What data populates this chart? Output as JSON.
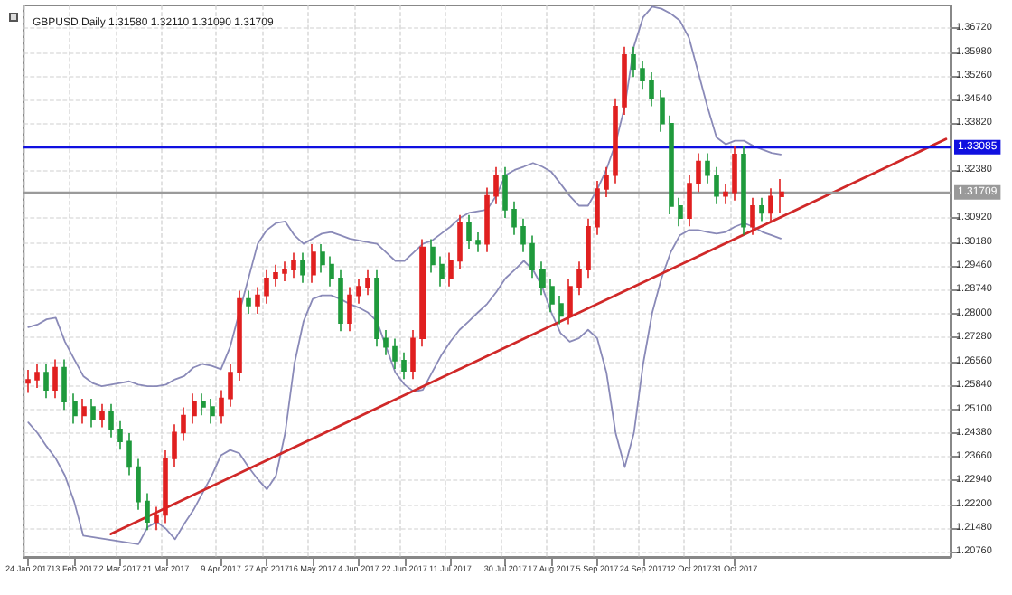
{
  "chart_data": {
    "type": "candlestick",
    "title": "GBPUSD,Daily 1.31580 1.32110 1.31090 1.31709",
    "categories": [
      "24 Jan 2017",
      null,
      null,
      null,
      null,
      "13 Feb 2017",
      null,
      null,
      null,
      null,
      "2 Mar 2017",
      null,
      null,
      null,
      null,
      "21 Mar 2017",
      null,
      null,
      null,
      null,
      null,
      "9 Apr 2017",
      null,
      null,
      null,
      null,
      "27 Apr 2017",
      null,
      null,
      null,
      null,
      "16 May 2017",
      null,
      null,
      null,
      null,
      "4 Jun 2017",
      null,
      null,
      null,
      null,
      "22 Jun 2017",
      null,
      null,
      null,
      null,
      "11 Jul 2017",
      null,
      null,
      null,
      null,
      null,
      "30 Jul 2017",
      null,
      null,
      null,
      null,
      "17 Aug 2017",
      null,
      null,
      null,
      null,
      "5 Sep 2017",
      null,
      null,
      null,
      null,
      "24 Sep 2017",
      null,
      null,
      null,
      null,
      "12 Oct 2017",
      null,
      null,
      null,
      null,
      "31 Oct 2017",
      null,
      null,
      null,
      null,
      null,
      null,
      null,
      null,
      null,
      null,
      null,
      null,
      null,
      null,
      null,
      null,
      null,
      null,
      null,
      null,
      null,
      null,
      null
    ],
    "series": [
      {
        "type": "candlestick",
        "ohlc": [
          [
            1.259,
            1.263,
            1.256,
            1.26
          ],
          [
            1.26,
            1.2647,
            1.2575,
            1.2622
          ],
          [
            1.2622,
            1.2647,
            1.2544,
            1.2569
          ],
          [
            1.2569,
            1.2662,
            1.2544,
            1.2637
          ],
          [
            1.2637,
            1.2662,
            1.2508,
            1.2533
          ],
          [
            1.2533,
            1.2558,
            1.2466,
            1.2491
          ],
          [
            1.2491,
            1.2542,
            1.2466,
            1.2517
          ],
          [
            1.2517,
            1.2542,
            1.2455,
            1.248
          ],
          [
            1.248,
            1.2526,
            1.2455,
            1.2501
          ],
          [
            1.2501,
            1.2526,
            1.2424,
            1.2449
          ],
          [
            1.2449,
            1.2474,
            1.2387,
            1.2412
          ],
          [
            1.2412,
            1.2437,
            1.2309,
            1.2334
          ],
          [
            1.2334,
            1.2359,
            1.2204,
            1.2229
          ],
          [
            1.2229,
            1.2254,
            1.2142,
            1.2167
          ],
          [
            1.2167,
            1.2213,
            1.2142,
            1.2188
          ],
          [
            1.2188,
            1.2385,
            1.2163,
            1.236
          ],
          [
            1.236,
            1.2464,
            1.2335,
            1.2439
          ],
          [
            1.2439,
            1.2516,
            1.2414,
            1.2491
          ],
          [
            1.2491,
            1.2558,
            1.2466,
            1.2533
          ],
          [
            1.2533,
            1.2558,
            1.2492,
            1.2517
          ],
          [
            1.2517,
            1.2542,
            1.2466,
            1.2491
          ],
          [
            1.2491,
            1.2568,
            1.2466,
            1.2543
          ],
          [
            1.2543,
            1.2647,
            1.2518,
            1.2622
          ],
          [
            1.2622,
            1.2871,
            1.2597,
            1.2846
          ],
          [
            1.2846,
            1.2871,
            1.2801,
            1.2826
          ],
          [
            1.2826,
            1.2882,
            1.2801,
            1.2857
          ],
          [
            1.2857,
            1.2934,
            1.2832,
            1.2909
          ],
          [
            1.2909,
            1.295,
            1.2884,
            1.2925
          ],
          [
            1.2925,
            1.296,
            1.29,
            1.2935
          ],
          [
            1.2935,
            1.2987,
            1.291,
            1.2962
          ],
          [
            1.2962,
            1.2987,
            1.2895,
            1.292
          ],
          [
            1.292,
            1.3013,
            1.2895,
            1.2988
          ],
          [
            1.2988,
            1.3013,
            1.2926,
            1.2951
          ],
          [
            1.2951,
            1.2976,
            1.2884,
            1.2909
          ],
          [
            1.2909,
            1.2934,
            1.2748,
            1.2773
          ],
          [
            1.2773,
            1.2882,
            1.2748,
            1.2857
          ],
          [
            1.2857,
            1.2908,
            1.2832,
            1.2883
          ],
          [
            1.2883,
            1.2934,
            1.2858,
            1.2909
          ],
          [
            1.2909,
            1.2934,
            1.2701,
            1.2726
          ],
          [
            1.2726,
            1.2751,
            1.2675,
            1.27
          ],
          [
            1.27,
            1.2725,
            1.2633,
            1.2658
          ],
          [
            1.2658,
            1.2683,
            1.2602,
            1.2627
          ],
          [
            1.2627,
            1.2751,
            1.2602,
            1.2726
          ],
          [
            1.2726,
            1.3028,
            1.2701,
            1.3003
          ],
          [
            1.3003,
            1.3028,
            1.2926,
            1.2951
          ],
          [
            1.2951,
            1.2976,
            1.2884,
            1.2909
          ],
          [
            1.2909,
            1.2987,
            1.2884,
            1.2962
          ],
          [
            1.2962,
            1.3102,
            1.2937,
            1.3077
          ],
          [
            1.3077,
            1.3102,
            1.2999,
            1.3024
          ],
          [
            1.3024,
            1.3049,
            1.2989,
            1.3014
          ],
          [
            1.3014,
            1.3185,
            1.2989,
            1.316
          ],
          [
            1.316,
            1.3248,
            1.3135,
            1.3223
          ],
          [
            1.3223,
            1.3248,
            1.3093,
            1.3118
          ],
          [
            1.3118,
            1.3143,
            1.3041,
            1.3066
          ],
          [
            1.3066,
            1.3091,
            1.2989,
            1.3014
          ],
          [
            1.3014,
            1.3039,
            1.291,
            1.2935
          ],
          [
            1.2935,
            1.296,
            1.2858,
            1.2883
          ],
          [
            1.2883,
            1.2908,
            1.2806,
            1.2831
          ],
          [
            1.2831,
            1.2856,
            1.2769,
            1.2794
          ],
          [
            1.2794,
            1.2908,
            1.2769,
            1.2883
          ],
          [
            1.2883,
            1.296,
            1.2858,
            1.2935
          ],
          [
            1.2935,
            1.3091,
            1.291,
            1.3066
          ],
          [
            1.3066,
            1.3206,
            1.3041,
            1.3181
          ],
          [
            1.3181,
            1.3248,
            1.3156,
            1.3223
          ],
          [
            1.3223,
            1.3457,
            1.3198,
            1.3432
          ],
          [
            1.3432,
            1.3614,
            1.3407,
            1.3589
          ],
          [
            1.3589,
            1.3614,
            1.3522,
            1.3547
          ],
          [
            1.3547,
            1.3572,
            1.3486,
            1.3511
          ],
          [
            1.3511,
            1.3536,
            1.3433,
            1.3458
          ],
          [
            1.3458,
            1.3483,
            1.3355,
            1.338
          ],
          [
            1.338,
            1.3405,
            1.3104,
            1.3129
          ],
          [
            1.3129,
            1.3154,
            1.3067,
            1.3092
          ],
          [
            1.3092,
            1.3222,
            1.3067,
            1.3197
          ],
          [
            1.3197,
            1.329,
            1.3172,
            1.3265
          ],
          [
            1.3265,
            1.329,
            1.3198,
            1.3223
          ],
          [
            1.3223,
            1.3248,
            1.3135,
            1.316
          ],
          [
            1.316,
            1.3196,
            1.3135,
            1.3171
          ],
          [
            1.3171,
            1.3311,
            1.3146,
            1.3286
          ],
          [
            1.3286,
            1.3311,
            1.3041,
            1.3066
          ],
          [
            1.3066,
            1.3154,
            1.3041,
            1.3129
          ],
          [
            1.3129,
            1.3154,
            1.3083,
            1.3108
          ],
          [
            1.3108,
            1.3183,
            1.3083,
            1.3158
          ],
          [
            1.3158,
            1.3211,
            1.3109,
            1.3171
          ],
          null,
          null,
          null,
          null,
          null,
          null,
          null,
          null,
          null,
          null,
          null,
          null,
          null,
          null,
          null,
          null,
          null,
          null
        ],
        "colors": [
          "#e02020",
          "#e02020",
          "#1f9a3c",
          "#e02020",
          "#1f9a3c",
          "#1f9a3c",
          "#e02020",
          "#1f9a3c",
          "#e02020",
          "#1f9a3c",
          "#1f9a3c",
          "#1f9a3c",
          "#1f9a3c",
          "#1f9a3c",
          "#e02020",
          "#e02020",
          "#e02020",
          "#e02020",
          "#e02020",
          "#1f9a3c",
          "#1f9a3c",
          "#e02020",
          "#e02020",
          "#e02020",
          "#1f9a3c",
          "#e02020",
          "#e02020",
          "#e02020",
          "#e02020",
          "#e02020",
          "#1f9a3c",
          "#e02020",
          "#1f9a3c",
          "#1f9a3c",
          "#1f9a3c",
          "#e02020",
          "#e02020",
          "#e02020",
          "#1f9a3c",
          "#1f9a3c",
          "#1f9a3c",
          "#1f9a3c",
          "#e02020",
          "#e02020",
          "#1f9a3c",
          "#1f9a3c",
          "#e02020",
          "#e02020",
          "#1f9a3c",
          "#1f9a3c",
          "#e02020",
          "#e02020",
          "#1f9a3c",
          "#1f9a3c",
          "#1f9a3c",
          "#1f9a3c",
          "#1f9a3c",
          "#1f9a3c",
          "#1f9a3c",
          "#e02020",
          "#e02020",
          "#e02020",
          "#e02020",
          "#e02020",
          "#e02020",
          "#e02020",
          "#1f9a3c",
          "#1f9a3c",
          "#1f9a3c",
          "#1f9a3c",
          "#1f9a3c",
          "#1f9a3c",
          "#e02020",
          "#e02020",
          "#1f9a3c",
          "#1f9a3c",
          "#e02020",
          "#e02020",
          "#1f9a3c",
          "#e02020",
          "#1f9a3c",
          "#e02020",
          "#e02020",
          null,
          null,
          null,
          null,
          null,
          null,
          null,
          null,
          null,
          null,
          null,
          null,
          null,
          null,
          null,
          null,
          null,
          null
        ]
      },
      {
        "type": "line",
        "color": "#8a8ab8",
        "values": [
          1.276,
          1.2768,
          1.2784,
          1.2789,
          1.2716,
          1.2663,
          1.2611,
          1.259,
          1.258,
          1.2585,
          1.259,
          1.2595,
          1.2585,
          1.258,
          1.258,
          1.2585,
          1.2601,
          1.2611,
          1.2637,
          1.2648,
          1.2642,
          1.2632,
          1.27,
          1.2805,
          1.2909,
          1.3014,
          1.3056,
          1.3077,
          1.3082,
          1.304,
          1.3014,
          1.303,
          1.3045,
          1.305,
          1.304,
          1.303,
          1.3024,
          1.3019,
          1.3014,
          1.2988,
          1.2962,
          1.2962,
          1.2988,
          1.3014,
          1.3024,
          1.3045,
          1.3066,
          1.3092,
          1.3108,
          1.3113,
          1.3118,
          1.316,
          1.3223,
          1.3239,
          1.3249,
          1.326,
          1.3249,
          1.3233,
          1.3197,
          1.316,
          1.313,
          1.313,
          1.318,
          1.324,
          1.332,
          1.3432,
          1.3615,
          1.3704,
          1.3736,
          1.373,
          1.3715,
          1.3694,
          1.3641,
          1.3537,
          1.3432,
          1.3338,
          1.3317,
          1.3328,
          1.3328,
          1.3312,
          1.3301,
          1.3291,
          1.3286,
          null,
          null,
          null,
          null,
          null,
          null,
          null,
          null,
          null,
          null,
          null,
          null,
          null,
          null,
          null,
          null,
          null,
          null
        ]
      },
      {
        "type": "line",
        "color": "#8a8ab8",
        "values": [
          1.247,
          1.2438,
          1.2397,
          1.236,
          1.2308,
          1.2229,
          1.2125,
          null,
          null,
          null,
          null,
          null,
          1.2099,
          1.2151,
          1.2167,
          1.2146,
          1.2114,
          1.2161,
          1.2203,
          1.2255,
          1.2308,
          1.237,
          1.2386,
          1.2376,
          1.2334,
          1.2297,
          1.2266,
          1.2308,
          1.2438,
          1.2648,
          1.2778,
          1.2846,
          1.2857,
          1.2857,
          1.2846,
          1.2831,
          1.282,
          1.2805,
          1.2778,
          1.27,
          1.2622,
          1.2585,
          1.2564,
          1.2569,
          1.2622,
          1.2674,
          1.2716,
          1.2752,
          1.2778,
          1.2805,
          1.2831,
          1.2867,
          1.2909,
          1.2935,
          1.2962,
          1.2935,
          1.2883,
          1.2805,
          1.2742,
          1.2716,
          1.2726,
          1.2752,
          1.2726,
          1.2622,
          1.2438,
          1.2334,
          1.2438,
          1.2648,
          1.2805,
          1.2909,
          1.2988,
          1.304,
          1.3056,
          1.3056,
          1.305,
          1.3045,
          1.305,
          1.3066,
          1.3077,
          1.3066,
          1.305,
          1.304,
          1.303,
          null,
          null,
          null,
          null,
          null,
          null,
          null,
          null,
          null,
          null,
          null,
          null,
          null,
          null,
          null,
          null,
          null,
          null
        ]
      },
      {
        "type": "line",
        "color": "#d02828",
        "values": [
          null,
          null,
          null,
          null,
          null,
          null,
          null,
          null,
          null,
          1.213,
          null,
          null,
          null,
          null,
          null,
          null,
          null,
          null,
          null,
          null,
          null,
          null,
          null,
          null,
          null,
          null,
          null,
          null,
          null,
          null,
          null,
          null,
          null,
          null,
          null,
          null,
          null,
          null,
          null,
          null,
          null,
          null,
          null,
          null,
          null,
          null,
          null,
          null,
          null,
          null,
          null,
          null,
          null,
          null,
          null,
          null,
          null,
          null,
          null,
          null,
          null,
          null,
          null,
          null,
          null,
          null,
          null,
          null,
          null,
          null,
          null,
          null,
          null,
          null,
          null,
          null,
          null,
          null,
          null,
          null,
          null,
          null,
          null,
          null,
          null,
          null,
          null,
          null,
          null,
          null,
          null,
          null,
          null,
          null,
          null,
          null,
          null,
          null,
          null,
          null,
          1.3333
        ]
      }
    ],
    "ylim": [
      1.206,
      1.374
    ],
    "yticks": [
      {
        "value": 1.2076,
        "label": "1.20760"
      },
      {
        "value": 1.2148,
        "label": "1.21480"
      },
      {
        "value": 1.222,
        "label": "1.22200"
      },
      {
        "value": 1.2294,
        "label": "1.22940"
      },
      {
        "value": 1.2366,
        "label": "1.23660"
      },
      {
        "value": 1.2438,
        "label": "1.24380"
      },
      {
        "value": 1.251,
        "label": "1.25100"
      },
      {
        "value": 1.2584,
        "label": "1.25840"
      },
      {
        "value": 1.2656,
        "label": "1.26560"
      },
      {
        "value": 1.2728,
        "label": "1.27280"
      },
      {
        "value": 1.28,
        "label": "1.28000"
      },
      {
        "value": 1.2874,
        "label": "1.28740"
      },
      {
        "value": 1.2946,
        "label": "1.29460"
      },
      {
        "value": 1.3018,
        "label": "1.30180"
      },
      {
        "value": 1.3092,
        "label": "1.30920"
      },
      {
        "value": 1.3238,
        "label": "1.32380"
      },
      {
        "value": 1.3382,
        "label": "1.33820"
      },
      {
        "value": 1.3454,
        "label": "1.34540"
      },
      {
        "value": 1.3526,
        "label": "1.35260"
      },
      {
        "value": 1.3598,
        "label": "1.35980"
      },
      {
        "value": 1.3672,
        "label": "1.36720"
      }
    ],
    "ref_lines": [
      {
        "axis": "y",
        "value": 1.33085,
        "label": "1.33085",
        "color": "#1010e0"
      },
      {
        "axis": "y",
        "value": 1.31709,
        "label": "1.31709",
        "color": "#9a9a9a"
      }
    ],
    "grid": true,
    "marker": "none",
    "line_style": "solid"
  }
}
